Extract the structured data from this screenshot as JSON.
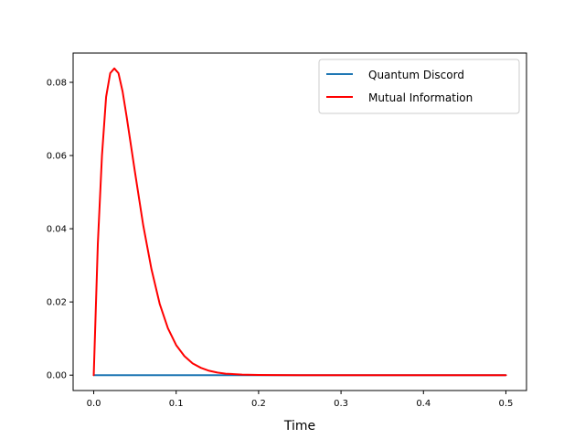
{
  "chart_data": {
    "type": "line",
    "title": "",
    "xlabel": "Time",
    "ylabel": "",
    "xlim": [
      -0.025,
      0.525
    ],
    "ylim": [
      -0.0042,
      0.088
    ],
    "xticks": [
      0.0,
      0.1,
      0.2,
      0.3,
      0.4,
      0.5
    ],
    "xtick_labels": [
      "0.0",
      "0.1",
      "0.2",
      "0.3",
      "0.4",
      "0.5"
    ],
    "yticks": [
      0.0,
      0.02,
      0.04,
      0.06,
      0.08
    ],
    "ytick_labels": [
      "0.00",
      "0.02",
      "0.04",
      "0.06",
      "0.08"
    ],
    "grid": false,
    "legend": "top-right",
    "series": [
      {
        "name": "Quantum Discord",
        "color": "#1f77b4",
        "x": [
          0.0,
          0.1,
          0.2,
          0.3,
          0.4,
          0.5
        ],
        "y": [
          0.0,
          0.0,
          0.0,
          0.0,
          0.0,
          0.0
        ]
      },
      {
        "name": "Mutual Information",
        "color": "#ff0000",
        "x": [
          0.0,
          0.005,
          0.01,
          0.015,
          0.02,
          0.025,
          0.03,
          0.035,
          0.04,
          0.05,
          0.06,
          0.07,
          0.08,
          0.09,
          0.1,
          0.11,
          0.12,
          0.13,
          0.14,
          0.15,
          0.16,
          0.18,
          0.2,
          0.22,
          0.25,
          0.3,
          0.35,
          0.4,
          0.45,
          0.5
        ],
        "y": [
          0.0,
          0.036,
          0.06,
          0.076,
          0.0825,
          0.0838,
          0.0825,
          0.0775,
          0.0705,
          0.0555,
          0.041,
          0.029,
          0.0195,
          0.0128,
          0.0082,
          0.0052,
          0.0032,
          0.002,
          0.0012,
          0.0007,
          0.0004,
          0.00015,
          5e-05,
          2e-05,
          0.0,
          0.0,
          0.0,
          0.0,
          0.0,
          0.0
        ]
      }
    ]
  }
}
